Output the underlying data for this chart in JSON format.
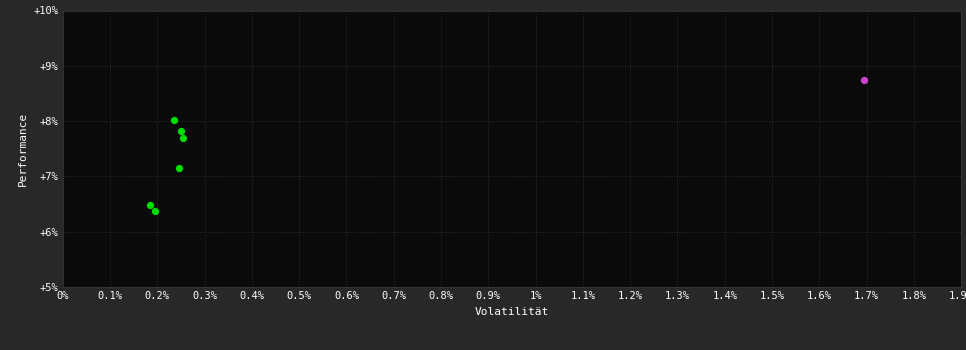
{
  "background_color": "#282828",
  "plot_bg_color": "#0a0a0a",
  "grid_color": "#2a2a2a",
  "text_color": "#ffffff",
  "xlabel": "Volatilität",
  "ylabel": "Performance",
  "xlim": [
    0.0,
    0.019
  ],
  "ylim": [
    0.05,
    0.1
  ],
  "green_points": [
    [
      0.00235,
      0.0802
    ],
    [
      0.0025,
      0.0783
    ],
    [
      0.00255,
      0.077
    ],
    [
      0.00245,
      0.0715
    ],
    [
      0.00185,
      0.0648
    ],
    [
      0.00195,
      0.0638
    ]
  ],
  "magenta_points": [
    [
      0.01695,
      0.0875
    ]
  ],
  "green_color": "#00dd00",
  "magenta_color": "#cc44cc",
  "marker_size": 18
}
